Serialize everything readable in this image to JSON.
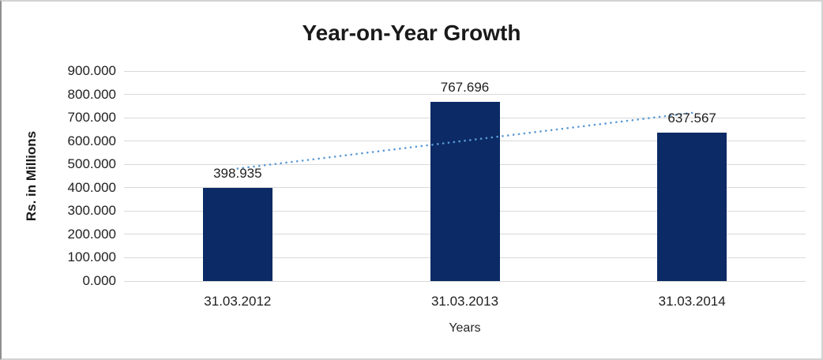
{
  "chart_data": {
    "type": "bar",
    "title": "Year-on-Year Growth",
    "xlabel": "Years",
    "ylabel": "Rs. in Millions",
    "categories": [
      "31.03.2012",
      "31.03.2013",
      "31.03.2014"
    ],
    "series": [
      {
        "name": "Rs. in Millions",
        "values": [
          398.935,
          767.696,
          637.567
        ],
        "data_labels": [
          "398.935",
          "767.696",
          "637.567"
        ]
      }
    ],
    "ylim": [
      0,
      900
    ],
    "ytick_step": 100,
    "ytick_labels": [
      "0.000",
      "100.000",
      "200.000",
      "300.000",
      "400.000",
      "500.000",
      "600.000",
      "700.000",
      "800.000",
      "900.000"
    ],
    "grid": true,
    "legend": "none",
    "colors": {
      "bar_fill": "#0b2a66",
      "gridline": "#d9d9d9",
      "trendline": "#5b9bd5",
      "text": "#1f1f1f"
    },
    "trendline": {
      "type": "linear",
      "style": "dotted",
      "color": "#5b9bd5"
    }
  }
}
